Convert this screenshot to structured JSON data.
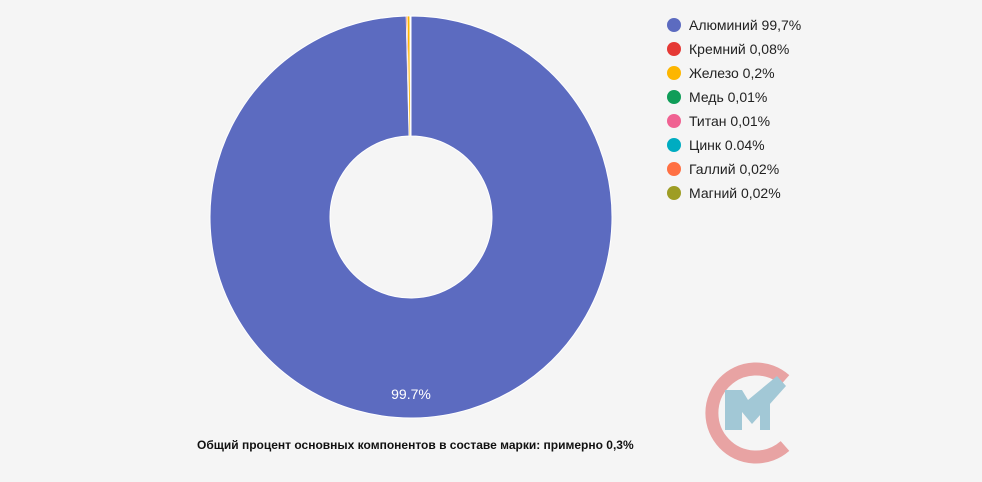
{
  "chart_data": {
    "type": "pie",
    "donut": true,
    "categories": [
      "Алюминий",
      "Кремний",
      "Железо",
      "Медь",
      "Титан",
      "Цинк",
      "Галлий",
      "Магний"
    ],
    "values": [
      99.7,
      0.08,
      0.2,
      0.01,
      0.01,
      0.04,
      0.02,
      0.02
    ],
    "legend_labels": [
      "Алюминий 99,7%",
      "Кремний 0,08%",
      "Железо 0,2%",
      "Медь 0,01%",
      "Титан 0,01%",
      "Цинк 0.04%",
      "Галлий 0,02%",
      "Магний 0,02%"
    ],
    "colors": [
      "#5C6BC0",
      "#E53935",
      "#FDB600",
      "#0F9D58",
      "#F06292",
      "#00ACC1",
      "#FF7043",
      "#9E9D24"
    ],
    "data_labels": [
      "99.7%"
    ],
    "legend_position": "right"
  },
  "caption": "Общий процент основных компонентов в составе марки: примерно 0,3%",
  "logo_colors": {
    "ring": "#E8A3A3",
    "letter": "#A2C8D6"
  }
}
